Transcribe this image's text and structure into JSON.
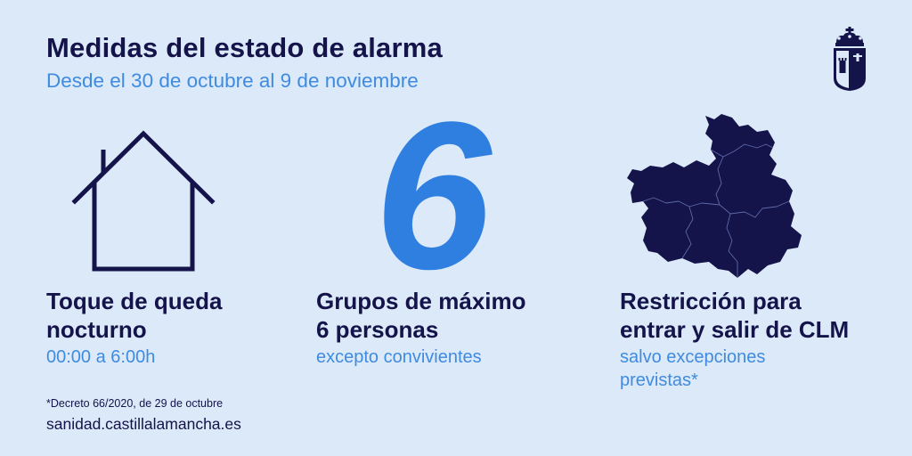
{
  "header": {
    "title": "Medidas del estado de alarma",
    "subtitle": "Desde el 30 de octubre al 9 de noviembre"
  },
  "logo": {
    "icon": "coat-of-arms-icon"
  },
  "columns": [
    {
      "icon": "house-icon",
      "title_lines": [
        "Toque de queda",
        "nocturno"
      ],
      "detail_lines": [
        "00:00 a 6:00h"
      ]
    },
    {
      "icon": "number-six-graphic",
      "big_number": "6",
      "title_lines": [
        "Grupos de máximo",
        "6 personas"
      ],
      "detail_lines": [
        "excepto convivientes"
      ]
    },
    {
      "icon": "castilla-la-mancha-map-icon",
      "title_lines": [
        "Restricción para",
        "entrar y salir de CLM"
      ],
      "detail_lines": [
        "salvo excepciones",
        "previstas*"
      ]
    }
  ],
  "footer": {
    "footnote": "*Decreto 66/2020, de 29 de octubre",
    "website": "sanidad.castillalamancha.es"
  },
  "colors": {
    "background": "#dbe9f9",
    "navy": "#14134a",
    "accent_blue": "#3f8be0",
    "big_number_blue": "#2f7fe0"
  }
}
